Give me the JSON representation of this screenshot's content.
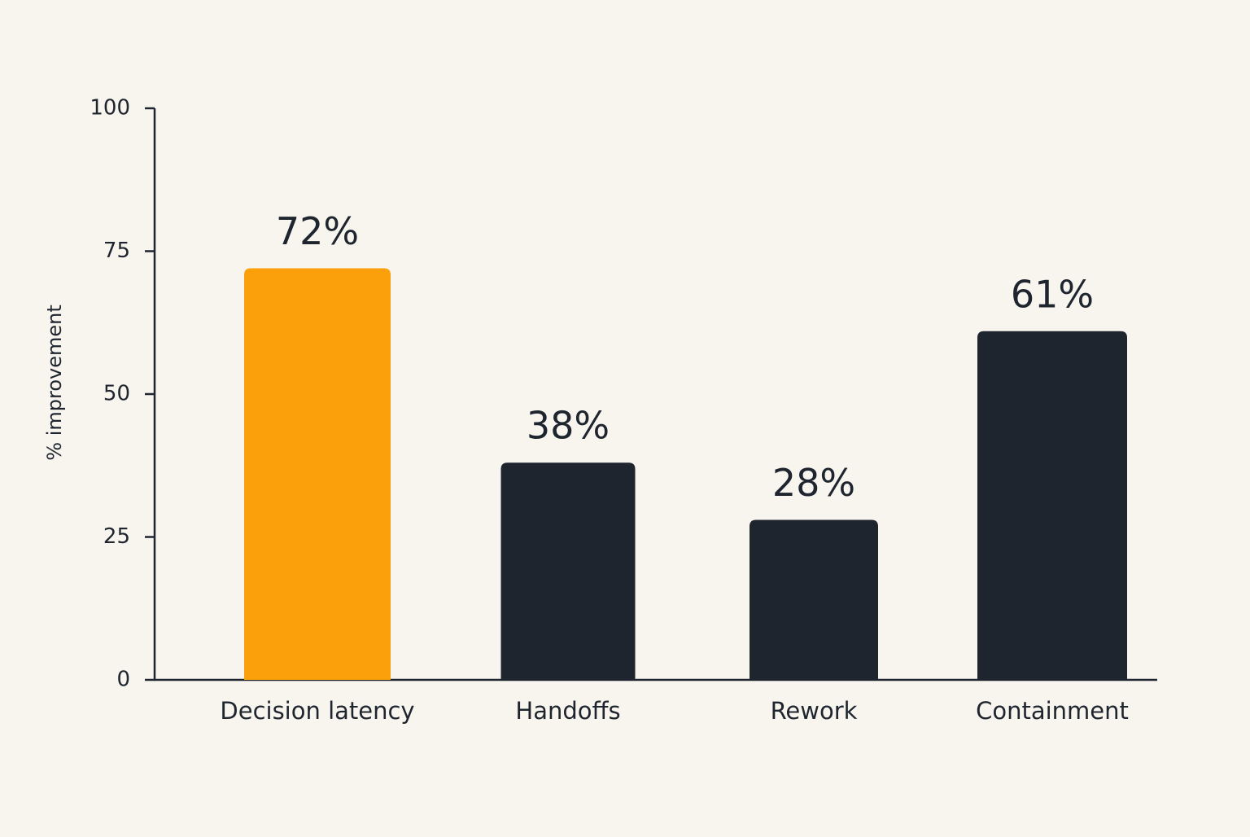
{
  "chart_data": {
    "type": "bar",
    "y_label": "% improvement",
    "categories": [
      "Decision latency",
      "Handoffs",
      "Rework",
      "Containment"
    ],
    "values": [
      72,
      38,
      28,
      61
    ],
    "value_labels": [
      "72%",
      "38%",
      "28%",
      "61%"
    ],
    "colors": [
      "#fba00b",
      "#1f252e",
      "#1f252e",
      "#1f252e"
    ],
    "ylim": [
      0,
      100
    ],
    "yticks": [
      0,
      25,
      50,
      75,
      100
    ],
    "grid": false
  }
}
